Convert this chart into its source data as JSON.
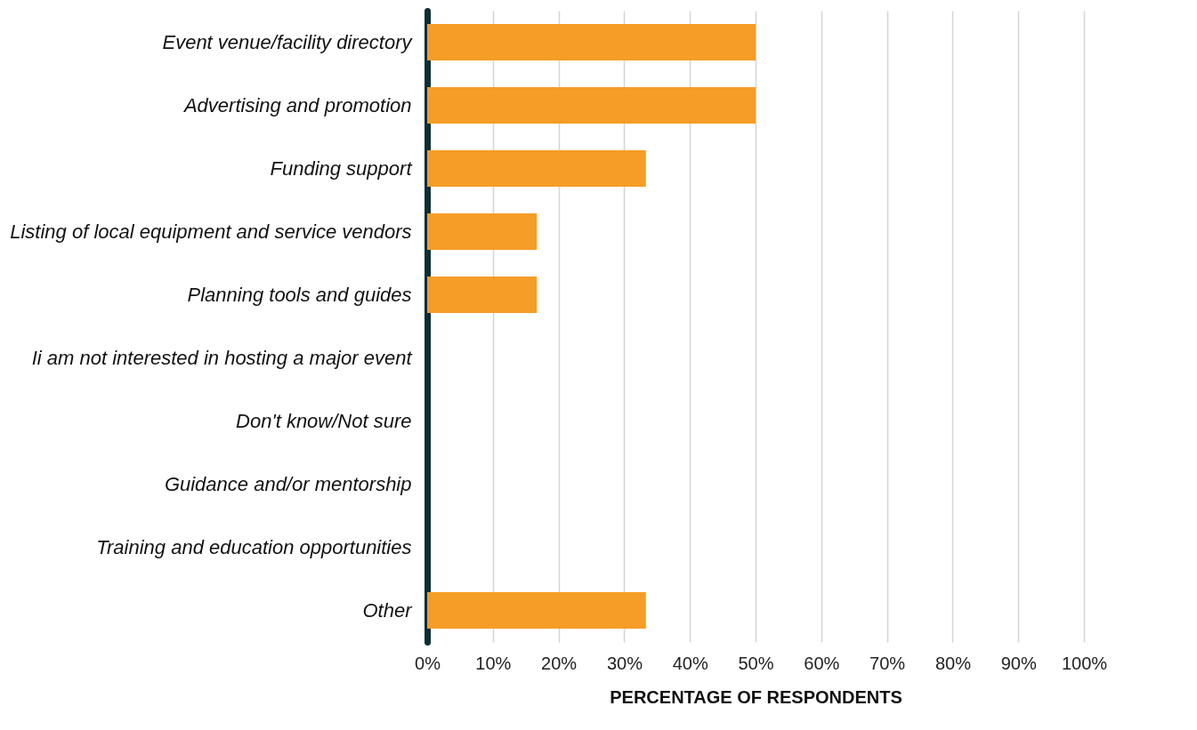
{
  "chart_data": {
    "type": "bar",
    "orientation": "horizontal",
    "xlabel": "PERCENTAGE OF RESPONDENTS",
    "categories": [
      "Event venue/facility directory",
      "Advertising and promotion",
      "Funding support",
      "Listing of local equipment and service vendors",
      "Planning tools and guides",
      "Ii am not interested in hosting a major event",
      "Don't know/Not sure",
      "Guidance and/or mentorship",
      "Training and education opportunities",
      "Other"
    ],
    "values": [
      50,
      50,
      33.3,
      16.7,
      16.7,
      0,
      0,
      0,
      0,
      33.3
    ],
    "color": "#f59d26",
    "xlim": [
      0,
      100
    ],
    "xticks": [
      {
        "value": 0,
        "label": "0%"
      },
      {
        "value": 10,
        "label": "10%"
      },
      {
        "value": 20,
        "label": "20%"
      },
      {
        "value": 30,
        "label": "30%"
      },
      {
        "value": 40,
        "label": "40%"
      },
      {
        "value": 50,
        "label": "50%"
      },
      {
        "value": 60,
        "label": "60%"
      },
      {
        "value": 70,
        "label": "70%"
      },
      {
        "value": 80,
        "label": "80%"
      },
      {
        "value": 90,
        "label": "90%"
      },
      {
        "value": 100,
        "label": "100%"
      }
    ],
    "grid": "x"
  }
}
